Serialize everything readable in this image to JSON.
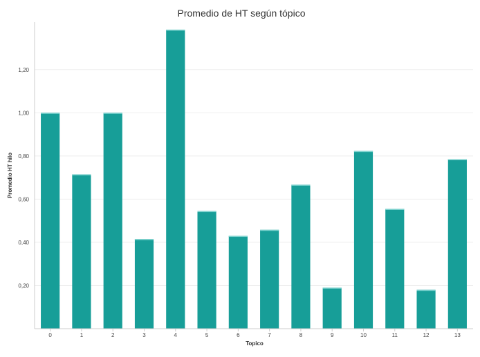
{
  "chart_data": {
    "type": "bar",
    "title": "Promedio de HT según tópico",
    "xlabel": "Topico",
    "ylabel": "Promedio HT hilo",
    "categories": [
      "0",
      "1",
      "2",
      "3",
      "4",
      "5",
      "6",
      "7",
      "8",
      "9",
      "10",
      "11",
      "12",
      "13"
    ],
    "values": [
      1.0,
      0.715,
      1.0,
      0.415,
      1.385,
      0.545,
      0.43,
      0.458,
      0.667,
      0.19,
      0.823,
      0.555,
      0.18,
      0.785
    ],
    "ylim": [
      0,
      1.42
    ],
    "yticks": [
      0.2,
      0.4,
      0.6,
      0.8,
      1.0,
      1.2
    ],
    "ytick_labels": [
      "0,20",
      "0,40",
      "0,60",
      "0,80",
      "1,00",
      "1,20"
    ],
    "grid": true,
    "colors": {
      "bar": "#179e98",
      "bar_top": "#7fd3cf"
    }
  }
}
